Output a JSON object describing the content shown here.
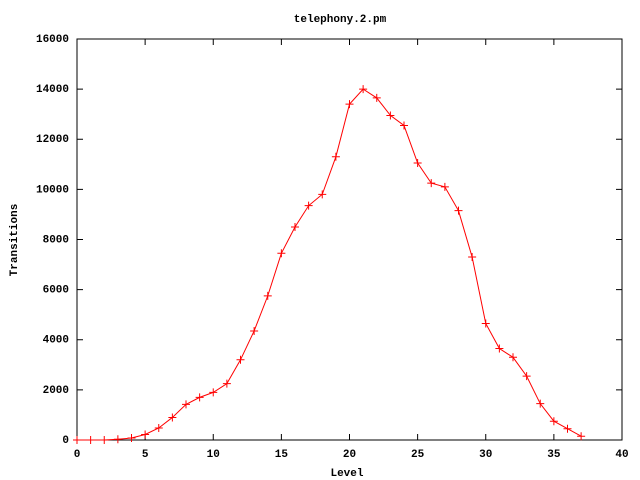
{
  "chart_data": {
    "type": "line",
    "title": "telephony.2.pm",
    "x_label": "Level",
    "y_label": "Transitions",
    "x": [
      0,
      1,
      2,
      3,
      4,
      5,
      6,
      7,
      8,
      9,
      10,
      11,
      12,
      13,
      14,
      15,
      16,
      17,
      18,
      19,
      20,
      21,
      22,
      23,
      24,
      25,
      26,
      27,
      28,
      29,
      30,
      31,
      32,
      33,
      34,
      35,
      36,
      37
    ],
    "series": [
      {
        "name": "telephony.2.pm",
        "color": "#ff0000",
        "values": [
          0,
          0,
          0,
          30,
          80,
          220,
          480,
          900,
          1420,
          1700,
          1900,
          2250,
          3200,
          4350,
          5750,
          7450,
          8500,
          9350,
          9800,
          11300,
          13400,
          14000,
          13650,
          12950,
          12550,
          11050,
          10250,
          10100,
          9150,
          7300,
          4650,
          3650,
          3300,
          2550,
          1450,
          750,
          450,
          150
        ]
      }
    ],
    "xlim": [
      0,
      40
    ],
    "xticks": [
      0,
      5,
      10,
      15,
      20,
      25,
      30,
      35,
      40
    ],
    "ylim": [
      0,
      16000
    ],
    "yticks": [
      0,
      2000,
      4000,
      6000,
      8000,
      10000,
      12000,
      14000,
      16000
    ],
    "grid": false
  }
}
